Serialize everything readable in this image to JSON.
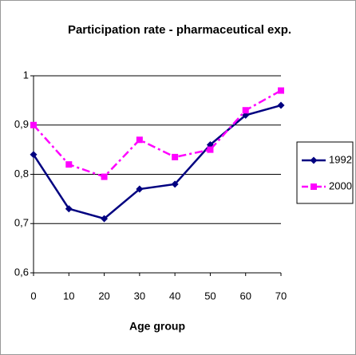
{
  "chart_data": {
    "type": "line",
    "title": "Participation rate - pharmaceutical exp.",
    "x_label": "Age group",
    "x": [
      0,
      10,
      20,
      30,
      40,
      50,
      60,
      70
    ],
    "series": [
      {
        "name": "1992",
        "color": "#000080",
        "marker": "diamond",
        "dash": "solid",
        "values": [
          0.84,
          0.73,
          0.71,
          0.77,
          0.78,
          0.86,
          0.92,
          0.94
        ]
      },
      {
        "name": "2000",
        "color": "#ff00ff",
        "marker": "square",
        "dash": "dashdot",
        "values": [
          0.9,
          0.82,
          0.795,
          0.87,
          0.835,
          0.85,
          0.93,
          0.97
        ]
      }
    ],
    "xlim": [
      0,
      70
    ],
    "xticks": [
      0,
      10,
      20,
      30,
      40,
      50,
      60,
      70
    ],
    "ylim": [
      0.6,
      1
    ],
    "yticks": [
      {
        "value": 0.6,
        "label": "0,6"
      },
      {
        "value": 0.7,
        "label": "0,7"
      },
      {
        "value": 0.8,
        "label": "0,8"
      },
      {
        "value": 0.9,
        "label": "0,9"
      },
      1
    ],
    "grid": true,
    "legend": "right"
  }
}
